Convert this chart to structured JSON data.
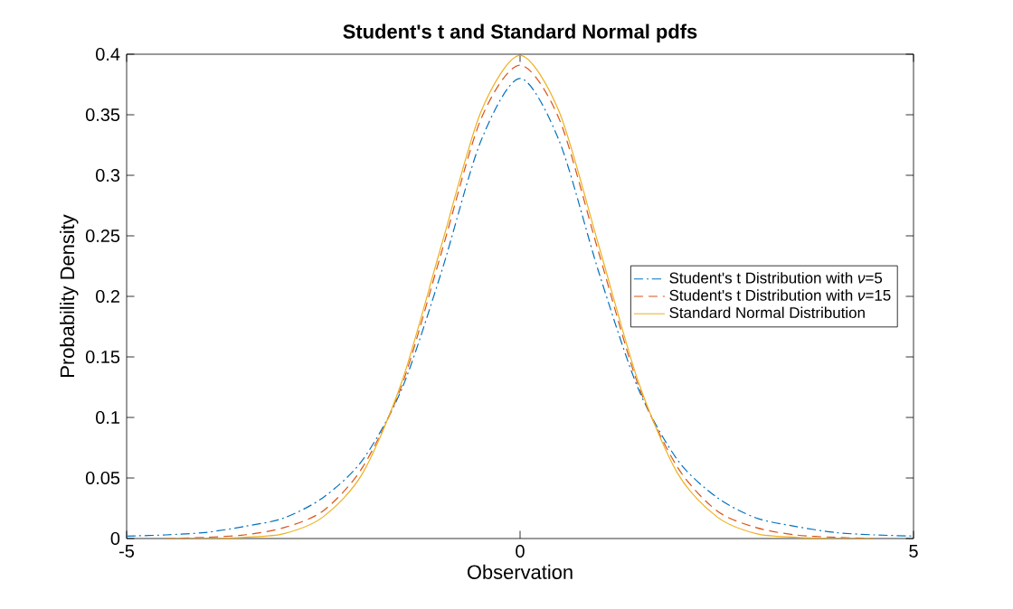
{
  "chart_data": {
    "type": "line",
    "title": "Student's t and Standard Normal pdfs",
    "xlabel": "Observation",
    "ylabel": "Probability Density",
    "x": [
      -5,
      -4.5,
      -4,
      -3.5,
      -3,
      -2.5,
      -2,
      -1.5,
      -1,
      -0.5,
      0,
      0.5,
      1,
      1.5,
      2,
      2.5,
      3,
      3.5,
      4,
      4.5,
      5
    ],
    "series": [
      {
        "name": "Student's t  Distribution  with  *ν*=5",
        "color": "#0072bd",
        "line_style": "dashdot",
        "values": [
          0.002,
          0.003,
          0.005,
          0.01,
          0.017,
          0.034,
          0.065,
          0.124,
          0.22,
          0.328,
          0.38,
          0.328,
          0.22,
          0.124,
          0.065,
          0.034,
          0.017,
          0.01,
          0.005,
          0.003,
          0.002
        ]
      },
      {
        "name": "Student's t  Distribution  with  *ν*=15",
        "color": "#d95319",
        "line_style": "dashed",
        "values": [
          null,
          0.0,
          0.001,
          0.003,
          0.009,
          0.023,
          0.059,
          0.127,
          0.236,
          0.346,
          0.391,
          0.346,
          0.236,
          0.127,
          0.059,
          0.023,
          0.009,
          0.003,
          0.001,
          0.0,
          null
        ]
      },
      {
        "name": "Standard Normal Distribution",
        "color": "#edb120",
        "line_style": "solid",
        "values": [
          null,
          0.0,
          0.0,
          0.001,
          0.004,
          0.018,
          0.054,
          0.13,
          0.242,
          0.352,
          0.399,
          0.352,
          0.242,
          0.13,
          0.054,
          0.018,
          0.004,
          0.001,
          0.0,
          0.0,
          null
        ]
      }
    ],
    "xlim": [
      -5,
      5
    ],
    "ylim": [
      0,
      0.4
    ],
    "xticks": [
      -5,
      0,
      5
    ],
    "yticks": [
      0,
      0.05,
      0.1,
      0.15,
      0.2,
      0.25,
      0.3,
      0.35,
      0.4
    ],
    "legend": "right",
    "grid": false
  }
}
